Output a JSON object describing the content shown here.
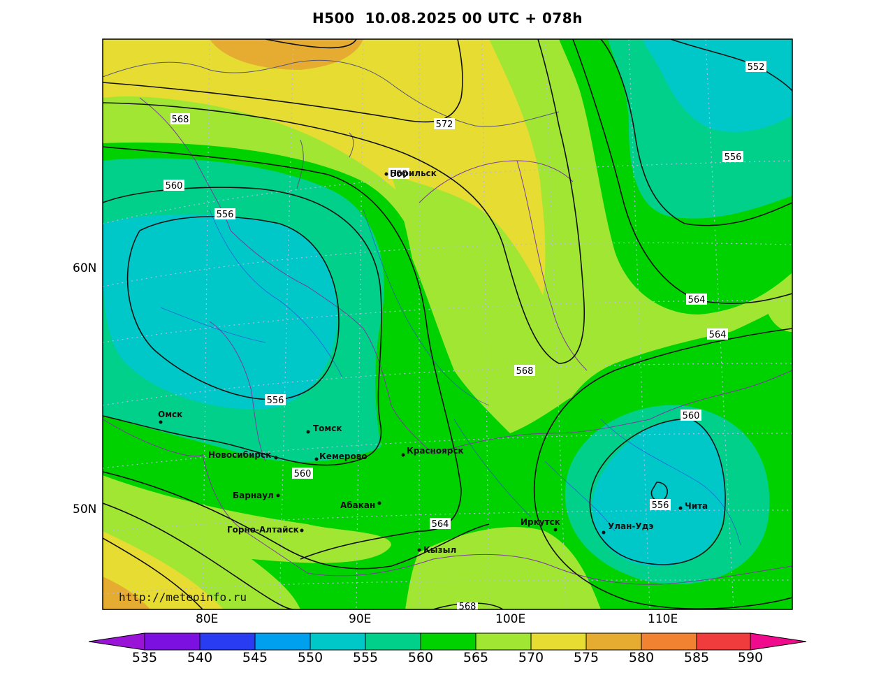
{
  "title": "H500  10.08.2025 00 UTC + 078h",
  "source_url": "http://meteoinfo.ru",
  "lat_labels": [
    "60N",
    "50N"
  ],
  "lon_labels": [
    "80E",
    "90E",
    "100E",
    "110E"
  ],
  "contour_labels": [
    "568",
    "572",
    "552",
    "556",
    "560",
    "556",
    "564",
    "564",
    "568",
    "560",
    "556",
    "556",
    "560",
    "564",
    "568",
    "560"
  ],
  "cities": [
    "Норильск",
    "Омск",
    "Томск",
    "Новосибирск",
    "Кемерово",
    "Красноярск",
    "Барнаул",
    "Абакан",
    "Горно-Алтайск",
    "Кызыл",
    "Иркутск",
    "Улан-Удэ",
    "Чита"
  ],
  "colorbar": {
    "labels": [
      "535",
      "540",
      "545",
      "550",
      "555",
      "560",
      "565",
      "570",
      "575",
      "580",
      "585",
      "590"
    ],
    "colors": [
      "#9a14d8",
      "#7b10e0",
      "#2a3cf2",
      "#00a0ee",
      "#00c8c8",
      "#00d08a",
      "#00d200",
      "#a0e632",
      "#e6dc32",
      "#e6ac32",
      "#f08232",
      "#f03c3c",
      "#f00a8c"
    ]
  }
}
